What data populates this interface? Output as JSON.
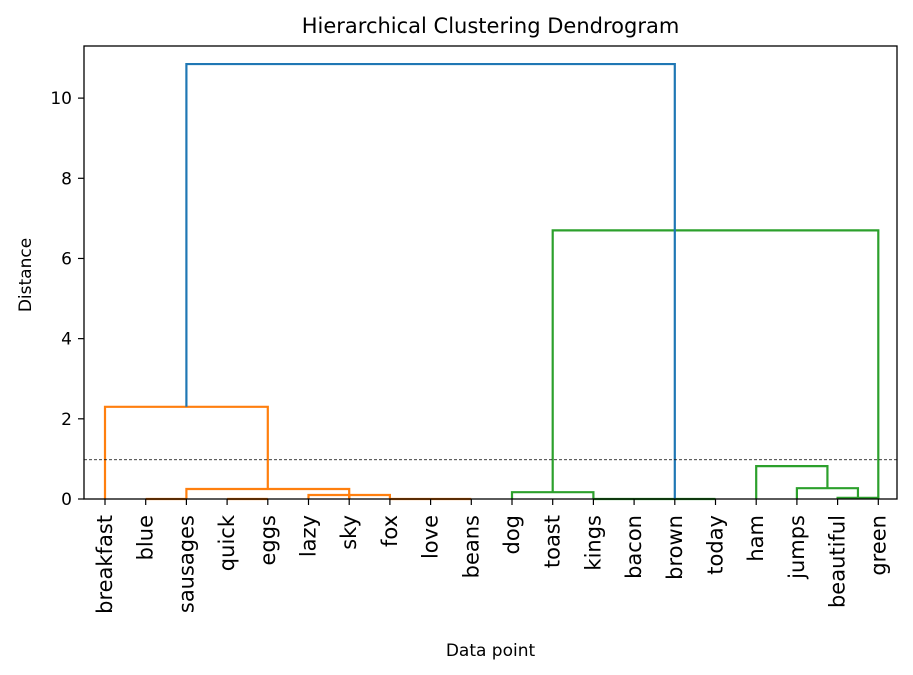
{
  "chart_data": {
    "type": "dendrogram",
    "title": "Hierarchical Clustering Dendrogram",
    "xlabel": "Data point",
    "ylabel": "Distance",
    "ylim": [
      0,
      11.3
    ],
    "yticks": [
      0,
      2,
      4,
      6,
      8,
      10
    ],
    "grid": false,
    "leaves": [
      "breakfast",
      "blue",
      "sausages",
      "quick",
      "eggs",
      "lazy",
      "sky",
      "fox",
      "love",
      "beans",
      "dog",
      "toast",
      "kings",
      "bacon",
      "brown",
      "today",
      "ham",
      "jumps",
      "beautiful",
      "green"
    ],
    "threshold": 0.98,
    "colors": {
      "root": "#1f77b4",
      "cluster_1": "#ff7f0e",
      "cluster_2": "#2ca02c",
      "threshold": "#000000"
    },
    "links": [
      {
        "left": 1,
        "right": 2,
        "height": 0.0,
        "color": "#ff7f0e"
      },
      {
        "left": 3,
        "right": 4,
        "height": 0.0,
        "color": "#ff7f0e"
      },
      {
        "left": 5,
        "right": 6,
        "height": 0.1,
        "color": "#ff7f0e"
      },
      {
        "left": 6,
        "right": 7,
        "height": 0.1,
        "color": "#ff7f0e"
      },
      {
        "left": 8,
        "right": 9,
        "height": 0.0,
        "color": "#ff7f0e"
      },
      {
        "left": 7,
        "right": 8,
        "height": 0.0,
        "color": "#ff7f0e"
      },
      {
        "left": 2,
        "right": 6,
        "height": 0.25,
        "color": "#ff7f0e"
      },
      {
        "left": 0,
        "right": 4,
        "height": 2.3,
        "color": "#ff7f0e"
      },
      {
        "left": 10,
        "right": 12,
        "height": 0.17,
        "color": "#2ca02c"
      },
      {
        "left": 12,
        "right": 13,
        "height": 0.0,
        "color": "#2ca02c"
      },
      {
        "left": 13,
        "right": 14,
        "height": 0.0,
        "color": "#2ca02c"
      },
      {
        "left": 14,
        "right": 15,
        "height": 0.0,
        "color": "#2ca02c"
      },
      {
        "left": 18,
        "right": 19,
        "height": 0.03,
        "color": "#2ca02c"
      },
      {
        "left": 17,
        "right": 18.5,
        "height": 0.27,
        "color": "#2ca02c"
      },
      {
        "left": 16,
        "right": 17.75,
        "height": 0.82,
        "color": "#2ca02c"
      },
      {
        "left": 11,
        "right": 19,
        "height": 6.7,
        "color": "#2ca02c"
      },
      {
        "left": 2,
        "right": 14,
        "height": 10.85,
        "color": "#1f77b4"
      }
    ]
  }
}
